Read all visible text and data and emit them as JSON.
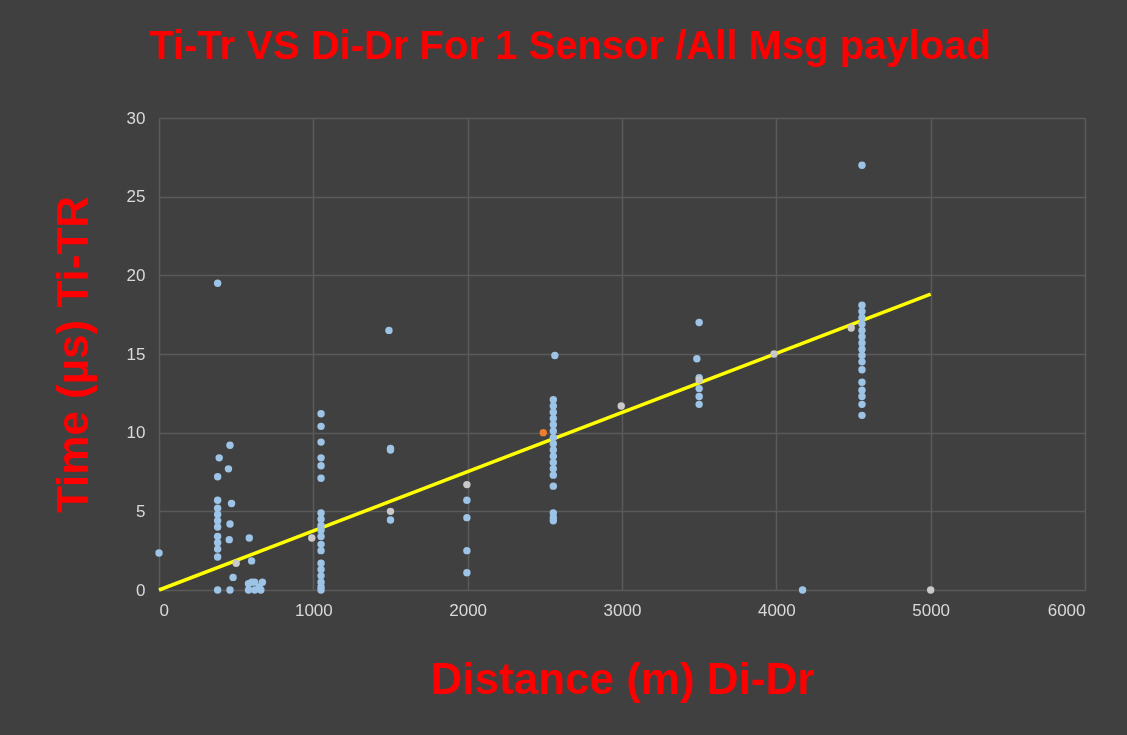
{
  "chart_data": {
    "type": "scatter",
    "title": "Ti-Tr VS Di-Dr For 1 Sensor /All Msg payload",
    "xlabel": "Distance (m) Di-Dr",
    "ylabel": "Time (µs) Ti-TR",
    "xlim": [
      0,
      6000
    ],
    "xticks": [
      0,
      1000,
      2000,
      3000,
      4000,
      5000,
      6000
    ],
    "ylim": [
      0,
      30
    ],
    "yticks": [
      0,
      5,
      10,
      15,
      20,
      25,
      30
    ],
    "grid": true,
    "marker": "circle",
    "series": [
      {
        "color": "#9dc3e6",
        "x": [
          0,
          380,
          390,
          460,
          450,
          380,
          470,
          380,
          380,
          380,
          380,
          380,
          460,
          455,
          380,
          380,
          380,
          380,
          585,
          600,
          480,
          380,
          460,
          580,
          600,
          620,
          650,
          670,
          580,
          620,
          660,
          1050,
          1050,
          1050,
          1050,
          1050,
          1050,
          1050,
          1050,
          1050,
          1050,
          1050,
          1050,
          1050,
          1050,
          1050,
          1050,
          1050,
          1050,
          1050,
          1490,
          1500,
          1500,
          1500,
          1995,
          1995,
          1995,
          1995,
          2565,
          2555,
          2555,
          2555,
          2555,
          2555,
          2555,
          2555,
          2555,
          2555,
          2555,
          2555,
          2555,
          2555,
          2555,
          2555,
          2555,
          2555,
          3500,
          3485,
          3500,
          3500,
          3500,
          3500,
          4170,
          4555,
          4555,
          4555,
          4555,
          4555,
          4555,
          4555,
          4555,
          4555,
          4555,
          4555,
          4555,
          4555,
          4555,
          4555,
          4555,
          4555
        ],
        "values": [
          2.35,
          19.5,
          8.4,
          9.2,
          7.7,
          7.2,
          5.5,
          5.7,
          5.2,
          4.8,
          4.4,
          4.0,
          4.2,
          3.2,
          3.4,
          3.0,
          2.6,
          2.1,
          3.3,
          1.85,
          0.8,
          0,
          0,
          0.4,
          0.5,
          0.5,
          0.2,
          0.5,
          0,
          0,
          0,
          11.2,
          10.4,
          9.4,
          8.4,
          7.9,
          7.1,
          4.9,
          4.5,
          4.1,
          3.8,
          3.4,
          2.9,
          2.5,
          1.7,
          1.3,
          0.9,
          0.5,
          0.2,
          0,
          16.5,
          9.0,
          8.9,
          4.45,
          5.7,
          4.6,
          2.5,
          1.1,
          14.9,
          12.1,
          11.7,
          11.3,
          10.9,
          10.5,
          10.1,
          9.7,
          9.3,
          8.9,
          8.5,
          8.1,
          7.7,
          7.3,
          6.6,
          4.9,
          4.6,
          4.4,
          17.0,
          14.7,
          13.5,
          12.8,
          12.3,
          11.8,
          0,
          27,
          18.1,
          17.7,
          17.3,
          16.9,
          16.5,
          16.1,
          15.7,
          15.3,
          14.9,
          14.5,
          14.0,
          13.2,
          12.7,
          12.3,
          11.8,
          11.1
        ]
      },
      {
        "color": "#c9c9c9",
        "x": [
          500,
          990,
          1500,
          1995,
          2995,
          3500,
          3985,
          4485,
          5000
        ],
        "values": [
          1.7,
          3.3,
          5.0,
          6.7,
          11.7,
          13.35,
          15.0,
          16.65,
          0
        ]
      },
      {
        "color": "#ed7d31",
        "x": [
          2490
        ],
        "values": [
          10.0
        ]
      },
      {
        "type": "line",
        "marker": "none",
        "color": "#ffff00",
        "x": [
          0,
          5000
        ],
        "values": [
          0,
          18.8
        ]
      }
    ]
  }
}
